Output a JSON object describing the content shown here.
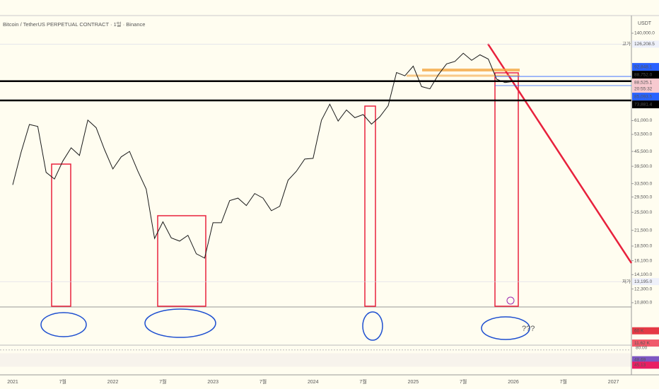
{
  "chart_data": {
    "type": "line",
    "title": "Bitcoin / TetherUS PERPETUAL CONTRACT · 1일 · Binance",
    "currency": "USDT",
    "log_scale": true,
    "color": "#1a1a1a",
    "categories": [
      "2021",
      null,
      null,
      null,
      null,
      null,
      "7월",
      null,
      null,
      null,
      null,
      null,
      "2022",
      null,
      null,
      null,
      null,
      null,
      "7월",
      null,
      null,
      null,
      null,
      null,
      "2023",
      null,
      null,
      null,
      null,
      null,
      "7월",
      null,
      null,
      null,
      null,
      null,
      "2024",
      null,
      null,
      null,
      null,
      null,
      "7월",
      null,
      null,
      null,
      null,
      null,
      "2025",
      null,
      null,
      null,
      null,
      null,
      "7월",
      null,
      null,
      null,
      null,
      null,
      "2026",
      null,
      null,
      null,
      null,
      null,
      "7월",
      null,
      null,
      null,
      null,
      null,
      "2027"
    ],
    "values": [
      33100,
      45100,
      58800,
      57700,
      37300,
      35000,
      41500,
      47100,
      43800,
      61300,
      57000,
      46300,
      38500,
      43200,
      45500,
      37700,
      31800,
      19900,
      23300,
      20000,
      19400,
      20500,
      17200,
      16500,
      23100,
      23100,
      28500,
      29200,
      27200,
      30500,
      29200,
      25900,
      27000,
      34600,
      37700,
      42300,
      42600,
      61200,
      71300,
      60700,
      67500,
      62700,
      64600,
      59000,
      63300,
      70300,
      96400,
      93400,
      102400,
      84300,
      82500,
      94200,
      104600,
      107100,
      115700,
      108200,
      114000,
      109500,
      90400,
      87600,
      88525.1,
      null,
      null,
      null,
      null,
      null,
      null,
      null,
      null,
      null,
      null,
      null,
      null
    ],
    "ylim": [
      10440,
      165600
    ],
    "yticks": [
      {
        "value": 140000,
        "label": "140,000.0"
      },
      {
        "value": 61000,
        "label": "61,000.0"
      },
      {
        "value": 53500,
        "label": "53,500.0"
      },
      {
        "value": 45500,
        "label": "45,500.0"
      },
      {
        "value": 39500,
        "label": "39,500.0"
      },
      {
        "value": 33500,
        "label": "33,500.0"
      },
      {
        "value": 29500,
        "label": "29,500.0"
      },
      {
        "value": 25500,
        "label": "25,500.0"
      },
      {
        "value": 21500,
        "label": "21,500.0"
      },
      {
        "value": 18500,
        "label": "18,500.0"
      },
      {
        "value": 16100,
        "label": "16,100.0"
      },
      {
        "value": 14100,
        "label": "14,100.0"
      },
      {
        "value": 12300,
        "label": "12,300.0"
      },
      {
        "value": 10800,
        "label": "10,800.0"
      }
    ],
    "high_label": "고가",
    "low_label": "저가",
    "high": {
      "value": 126208.5,
      "label": "126,208.5"
    },
    "low": {
      "value": 13195,
      "label": "13,195.0"
    },
    "price_tags": [
      {
        "value": 92848.1,
        "label": "92,848.1",
        "color": "#2962ff"
      },
      {
        "value": 88752,
        "label": "88,752.0",
        "color": "#000000"
      },
      {
        "value": 88525.1,
        "label": "88,525.1",
        "color": "#f7c9cf"
      },
      {
        "value": 85093.5,
        "label": "85,093.5",
        "color": "#2962ff"
      },
      {
        "value": 73881.4,
        "label": "73,881.4",
        "color": "#000000"
      }
    ],
    "countdown": "20:55:32",
    "volume": {
      "ylim": [
        0,
        200000
      ],
      "tags": [
        {
          "value": 60000,
          "label": "60 K",
          "color": "#e53945"
        },
        {
          "value": 11620,
          "label": "11.62 K",
          "color": "#f05a6a"
        }
      ]
    },
    "rsi": {
      "ylim": [
        10,
        90
      ],
      "ticks": [
        {
          "value": 80,
          "label": "80.00"
        }
      ],
      "tags": [
        {
          "value": 48.69,
          "label": "48.69",
          "color": "#7e57c2"
        },
        {
          "value": 45.13,
          "label": "45.13",
          "color": "#e91e63"
        }
      ]
    },
    "annotation": "???"
  }
}
